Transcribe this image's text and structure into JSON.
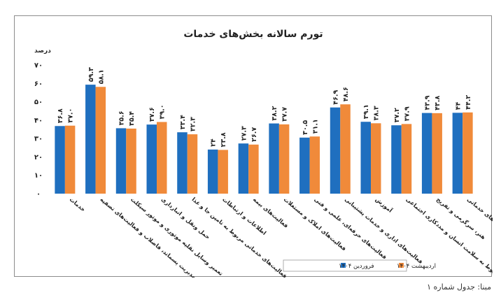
{
  "source_note": "مبنا: جدول شماره ۱",
  "chart_data": {
    "type": "bar",
    "title": "تورم سالانه بخش‌های خدمات",
    "ylabel": "درصد",
    "ylim": [
      0,
      70
    ],
    "yticks": [
      0,
      10,
      20,
      30,
      40,
      50,
      60,
      70
    ],
    "ytick_labels": [
      "۰",
      "۱۰",
      "۲۰",
      "۳۰",
      "۴۰",
      "۵۰",
      "۶۰",
      "۷۰"
    ],
    "grid": false,
    "legend_position": "bottom-right",
    "categories": [
      "خدمات",
      "آب‌رسانی،مدیریت پسماند، فاضلاب و فعالیت‌های تصفیه",
      "تعمیر وسایل نقلیه موتوری و موتور سیکلت",
      "حمل ونقل و انبارداری",
      "فعالیت‌های خدماتی مربوط به تامین جا و غذا",
      "اطلاعات و ارتباطات",
      "فعالیت‌های بیمه",
      "فعالیت‌های املاک و مستغلات",
      "فعالیت‌های حرفه‌ای، علمی و فنی",
      "فعالیت‌های اداری و خدمات پشتیبانی",
      "آموزش",
      "فعالیت‌های مربوط به سلامت انسان و مددکاری اجتماعی",
      "هنر، سرگرمی و تفریح",
      "سایر فعالیت‌های خدماتی"
    ],
    "series": [
      {
        "name": "فروردین ۱۴۰۴",
        "color": "#1f6fbf",
        "values": [
          36.8,
          59.3,
          35.6,
          37.6,
          33.4,
          24.0,
          27.3,
          38.2,
          30.5,
          46.9,
          39.1,
          37.2,
          43.9,
          44.0
        ],
        "labels": [
          "۳۶.۸",
          "۵۹.۳",
          "۳۵.۶",
          "۳۷.۶",
          "۳۳.۴",
          "۲۴",
          "۲۷.۳",
          "۳۸.۲",
          "۳۰.۵",
          "۴۶.۹",
          "۳۹.۱",
          "۳۷.۲",
          "۴۳.۹",
          "۴۴"
        ]
      },
      {
        "name": "اردیبهشت ۱۴۰۴",
        "color": "#f08a3a",
        "values": [
          37.0,
          58.1,
          35.4,
          39.0,
          32.3,
          23.8,
          26.7,
          37.7,
          31.1,
          48.6,
          38.3,
          37.9,
          43.8,
          44.2
        ],
        "labels": [
          "۳۷.۰",
          "۵۸.۱",
          "۳۵.۴",
          "۳۹.۰",
          "۳۲.۳",
          "۲۳.۸",
          "۲۶.۷",
          "۳۷.۷",
          "۳۱.۱",
          "۴۸.۶",
          "۳۸.۳",
          "۳۷.۹",
          "۴۳.۸",
          "۴۴.۲"
        ]
      }
    ]
  }
}
